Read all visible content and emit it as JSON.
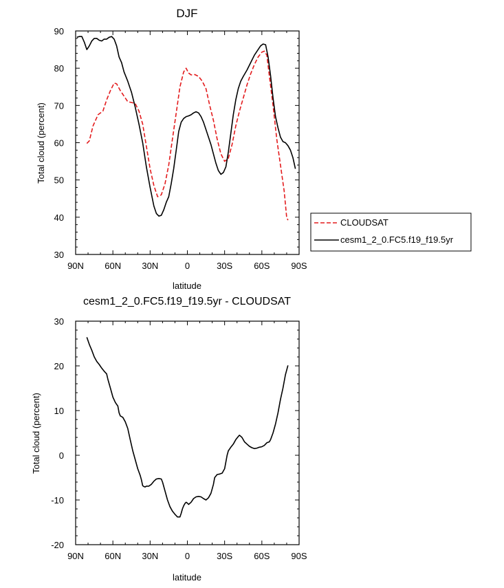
{
  "chart_data": [
    {
      "type": "line",
      "title": "DJF",
      "xlabel": "latitude",
      "ylabel": "Total cloud (percent)",
      "xlim": [
        90,
        -90
      ],
      "ylim": [
        30,
        90
      ],
      "x_ticks": [
        90,
        60,
        30,
        0,
        -30,
        -60,
        -90
      ],
      "x_tick_labels": [
        "90N",
        "60N",
        "30N",
        "0",
        "30S",
        "60S",
        "90S"
      ],
      "y_ticks": [
        30,
        40,
        50,
        60,
        70,
        80,
        90
      ],
      "y_tick_labels": [
        "30",
        "40",
        "50",
        "60",
        "70",
        "80",
        "90"
      ],
      "grid": false,
      "legend": "right",
      "series": [
        {
          "name": "CLOUDSAT",
          "color": "#e31a1c",
          "style": "dashed",
          "points": [
            [
              81,
              59.8
            ],
            [
              79,
              60.5
            ],
            [
              76,
              64.5
            ],
            [
              72,
              67.5
            ],
            [
              68,
              68.5
            ],
            [
              65,
              71.5
            ],
            [
              62,
              74
            ],
            [
              59,
              76
            ],
            [
              57,
              75.8
            ],
            [
              54,
              74
            ],
            [
              51,
              72.5
            ],
            [
              48,
              71
            ],
            [
              45,
              70.8
            ],
            [
              42,
              70.5
            ],
            [
              39,
              68.5
            ],
            [
              36,
              65
            ],
            [
              33,
              59
            ],
            [
              30,
              53
            ],
            [
              27,
              48.5
            ],
            [
              24,
              45.5
            ],
            [
              21,
              46
            ],
            [
              18,
              49
            ],
            [
              15,
              54
            ],
            [
              12,
              61
            ],
            [
              9,
              68
            ],
            [
              6,
              75
            ],
            [
              3,
              79
            ],
            [
              1,
              80
            ],
            [
              -1,
              78.7
            ],
            [
              -3,
              78.2
            ],
            [
              -6,
              78.3
            ],
            [
              -9,
              77.8
            ],
            [
              -12,
              76.5
            ],
            [
              -15,
              74.5
            ],
            [
              -18,
              70
            ],
            [
              -21,
              66
            ],
            [
              -24,
              61
            ],
            [
              -27,
              57
            ],
            [
              -30,
              55
            ],
            [
              -33,
              55.8
            ],
            [
              -36,
              59.5
            ],
            [
              -39,
              64.5
            ],
            [
              -42,
              68.5
            ],
            [
              -45,
              72
            ],
            [
              -48,
              75.5
            ],
            [
              -51,
              78.5
            ],
            [
              -54,
              81
            ],
            [
              -57,
              83
            ],
            [
              -60,
              84.3
            ],
            [
              -62,
              84.6
            ],
            [
              -64,
              83.5
            ],
            [
              -66,
              78
            ],
            [
              -69,
              70
            ],
            [
              -72,
              61
            ],
            [
              -75,
              54
            ],
            [
              -78,
              47
            ],
            [
              -80,
              40
            ],
            [
              -81,
              39.2
            ]
          ]
        },
        {
          "name": "cesm1_2_0.FC5.f19_f19.5yr",
          "color": "#000000",
          "style": "solid",
          "points": [
            [
              89,
              88.3
            ],
            [
              87,
              88.5
            ],
            [
              85,
              88.5
            ],
            [
              83,
              87
            ],
            [
              81,
              85
            ],
            [
              79,
              86
            ],
            [
              77,
              87.3
            ],
            [
              75,
              88
            ],
            [
              73,
              88
            ],
            [
              71,
              87.5
            ],
            [
              69,
              87.3
            ],
            [
              67,
              87.8
            ],
            [
              65,
              87.8
            ],
            [
              63,
              88.3
            ],
            [
              61,
              88.5
            ],
            [
              59,
              87.8
            ],
            [
              57,
              86
            ],
            [
              55,
              83
            ],
            [
              53,
              81.5
            ],
            [
              51,
              79
            ],
            [
              48,
              76.5
            ],
            [
              45,
              73.5
            ],
            [
              42,
              69.5
            ],
            [
              39,
              65
            ],
            [
              36,
              60
            ],
            [
              33,
              53.5
            ],
            [
              30,
              48
            ],
            [
              27,
              43
            ],
            [
              25,
              41
            ],
            [
              23,
              40.3
            ],
            [
              21,
              40.5
            ],
            [
              19,
              42
            ],
            [
              17,
              44
            ],
            [
              15,
              45.5
            ],
            [
              13,
              49
            ],
            [
              11,
              53
            ],
            [
              9,
              58
            ],
            [
              7,
              63
            ],
            [
              5,
              65.5
            ],
            [
              3,
              66.5
            ],
            [
              1,
              67
            ],
            [
              -1,
              67.2
            ],
            [
              -3,
              67.5
            ],
            [
              -5,
              68
            ],
            [
              -7,
              68.3
            ],
            [
              -9,
              68
            ],
            [
              -11,
              67
            ],
            [
              -13,
              65.5
            ],
            [
              -15,
              63.5
            ],
            [
              -17,
              61.5
            ],
            [
              -19,
              59.5
            ],
            [
              -21,
              57
            ],
            [
              -23,
              54.5
            ],
            [
              -25,
              52.5
            ],
            [
              -27,
              51.5
            ],
            [
              -29,
              52
            ],
            [
              -31,
              53.5
            ],
            [
              -33,
              57.5
            ],
            [
              -35,
              62.5
            ],
            [
              -37,
              67.5
            ],
            [
              -39,
              71.5
            ],
            [
              -41,
              74.5
            ],
            [
              -43,
              76.5
            ],
            [
              -45,
              77.8
            ],
            [
              -48,
              79.5
            ],
            [
              -51,
              81.5
            ],
            [
              -54,
              83.5
            ],
            [
              -57,
              85
            ],
            [
              -59,
              86
            ],
            [
              -61,
              86.5
            ],
            [
              -63,
              86.3
            ],
            [
              -65,
              83
            ],
            [
              -67,
              78
            ],
            [
              -69,
              72
            ],
            [
              -71,
              67
            ],
            [
              -73,
              64
            ],
            [
              -75,
              61.5
            ],
            [
              -77,
              60.3
            ],
            [
              -79,
              60
            ],
            [
              -81,
              59.2
            ],
            [
              -83,
              58
            ],
            [
              -85,
              56
            ],
            [
              -87,
              53
            ]
          ]
        }
      ]
    },
    {
      "type": "line",
      "title": "cesm1_2_0.FC5.f19_f19.5yr - CLOUDSAT",
      "xlabel": "latitude",
      "ylabel": "Total cloud (percent)",
      "xlim": [
        90,
        -90
      ],
      "ylim": [
        -20,
        30
      ],
      "x_ticks": [
        90,
        60,
        30,
        0,
        -30,
        -60,
        -90
      ],
      "x_tick_labels": [
        "90N",
        "60N",
        "30N",
        "0",
        "30S",
        "60S",
        "90S"
      ],
      "y_ticks": [
        -20,
        -10,
        0,
        10,
        20,
        30
      ],
      "y_tick_labels": [
        "-20",
        "-10",
        "0",
        "10",
        "20",
        "30"
      ],
      "grid": false,
      "series": [
        {
          "color": "#000000",
          "style": "solid",
          "points": [
            [
              81,
              26.4
            ],
            [
              79,
              24.8
            ],
            [
              77,
              23.5
            ],
            [
              75,
              22
            ],
            [
              73,
              21
            ],
            [
              71,
              20.3
            ],
            [
              69,
              19.5
            ],
            [
              67,
              18.8
            ],
            [
              65,
              18.2
            ],
            [
              64,
              17
            ],
            [
              62,
              15
            ],
            [
              60,
              13
            ],
            [
              58,
              11.8
            ],
            [
              56,
              11
            ],
            [
              55,
              9.5
            ],
            [
              54,
              8.8
            ],
            [
              52,
              8.5
            ],
            [
              50,
              7.5
            ],
            [
              48,
              6
            ],
            [
              46,
              3.5
            ],
            [
              44,
              1
            ],
            [
              42,
              -1
            ],
            [
              40,
              -3
            ],
            [
              38,
              -4.5
            ],
            [
              37,
              -5.5
            ],
            [
              36,
              -6.8
            ],
            [
              35,
              -7
            ],
            [
              34,
              -7.1
            ],
            [
              33,
              -6.9
            ],
            [
              31,
              -6.9
            ],
            [
              29,
              -6.5
            ],
            [
              27,
              -5.8
            ],
            [
              25,
              -5.3
            ],
            [
              23,
              -5.2
            ],
            [
              21,
              -5.3
            ],
            [
              20,
              -6
            ],
            [
              18,
              -8
            ],
            [
              16,
              -10
            ],
            [
              14,
              -11.5
            ],
            [
              12,
              -12.5
            ],
            [
              10,
              -13.2
            ],
            [
              8,
              -13.8
            ],
            [
              6,
              -13.8
            ],
            [
              5,
              -13
            ],
            [
              4,
              -12
            ],
            [
              3,
              -11.3
            ],
            [
              2,
              -10.8
            ],
            [
              1,
              -10.5
            ],
            [
              0,
              -10.7
            ],
            [
              -1,
              -11
            ],
            [
              -3,
              -10.5
            ],
            [
              -5,
              -9.7
            ],
            [
              -7,
              -9.3
            ],
            [
              -9,
              -9.2
            ],
            [
              -11,
              -9.3
            ],
            [
              -13,
              -9.7
            ],
            [
              -15,
              -10
            ],
            [
              -17,
              -9.5
            ],
            [
              -19,
              -8.5
            ],
            [
              -21,
              -6.5
            ],
            [
              -22,
              -5
            ],
            [
              -24,
              -4.3
            ],
            [
              -26,
              -4.2
            ],
            [
              -28,
              -4
            ],
            [
              -30,
              -3
            ],
            [
              -31,
              -1.5
            ],
            [
              -32,
              0
            ],
            [
              -33,
              1
            ],
            [
              -35,
              1.8
            ],
            [
              -37,
              2.5
            ],
            [
              -39,
              3.5
            ],
            [
              -41,
              4.2
            ],
            [
              -42,
              4.5
            ],
            [
              -44,
              4
            ],
            [
              -46,
              3
            ],
            [
              -48,
              2.5
            ],
            [
              -50,
              2
            ],
            [
              -52,
              1.7
            ],
            [
              -54,
              1.5
            ],
            [
              -56,
              1.6
            ],
            [
              -58,
              1.8
            ],
            [
              -60,
              1.9
            ],
            [
              -62,
              2.2
            ],
            [
              -64,
              2.8
            ],
            [
              -66,
              3
            ],
            [
              -67,
              3.5
            ],
            [
              -69,
              5
            ],
            [
              -71,
              7
            ],
            [
              -73,
              9.5
            ],
            [
              -75,
              12.5
            ],
            [
              -77,
              15
            ],
            [
              -79,
              18
            ],
            [
              -81,
              20.1
            ]
          ]
        }
      ]
    }
  ]
}
